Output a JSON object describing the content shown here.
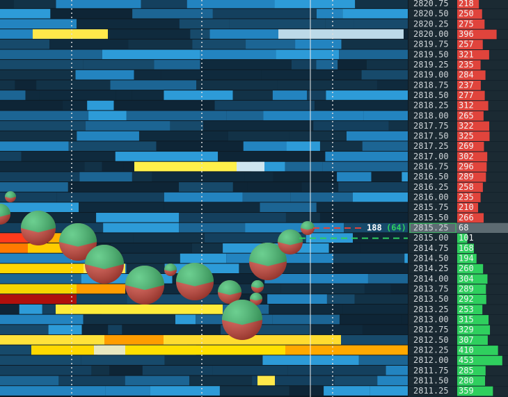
{
  "ladder": {
    "ask_color": "#e0443c",
    "bid_color": "#2fcf5e",
    "last_color": "#5d6b72",
    "asks": [
      {
        "price": "2820.75",
        "size": 218
      },
      {
        "price": "2820.50",
        "size": 250
      },
      {
        "price": "2820.25",
        "size": 275
      },
      {
        "price": "2820.00",
        "size": 396
      },
      {
        "price": "2819.75",
        "size": 257
      },
      {
        "price": "2819.50",
        "size": 321
      },
      {
        "price": "2819.25",
        "size": 235
      },
      {
        "price": "2819.00",
        "size": 284
      },
      {
        "price": "2818.75",
        "size": 237
      },
      {
        "price": "2818.50",
        "size": 277
      },
      {
        "price": "2818.25",
        "size": 312
      },
      {
        "price": "2818.00",
        "size": 265
      },
      {
        "price": "2817.75",
        "size": 322
      },
      {
        "price": "2817.50",
        "size": 325
      },
      {
        "price": "2817.25",
        "size": 269
      },
      {
        "price": "2817.00",
        "size": 302
      },
      {
        "price": "2816.75",
        "size": 296
      },
      {
        "price": "2816.50",
        "size": 289
      },
      {
        "price": "2816.25",
        "size": 258
      },
      {
        "price": "2816.00",
        "size": 235
      },
      {
        "price": "2815.75",
        "size": 210
      },
      {
        "price": "2815.50",
        "size": 266
      }
    ],
    "last": {
      "price": "2815.25",
      "size": 68
    },
    "bids": [
      {
        "price": "2815.00",
        "size": 101
      },
      {
        "price": "2814.75",
        "size": 168
      },
      {
        "price": "2814.50",
        "size": 194
      },
      {
        "price": "2814.25",
        "size": 260
      },
      {
        "price": "2814.00",
        "size": 304
      },
      {
        "price": "2813.75",
        "size": 289
      },
      {
        "price": "2813.50",
        "size": 292
      },
      {
        "price": "2813.25",
        "size": 253
      },
      {
        "price": "2813.00",
        "size": 315
      },
      {
        "price": "2812.75",
        "size": 329
      },
      {
        "price": "2812.50",
        "size": 307
      },
      {
        "price": "2812.25",
        "size": 410
      },
      {
        "price": "2812.00",
        "size": 453
      },
      {
        "price": "2811.75",
        "size": 285
      },
      {
        "price": "2811.50",
        "size": 280
      },
      {
        "price": "2811.25",
        "size": 359
      }
    ]
  },
  "last_trade": {
    "size": "188",
    "delta": "(64)"
  }
}
